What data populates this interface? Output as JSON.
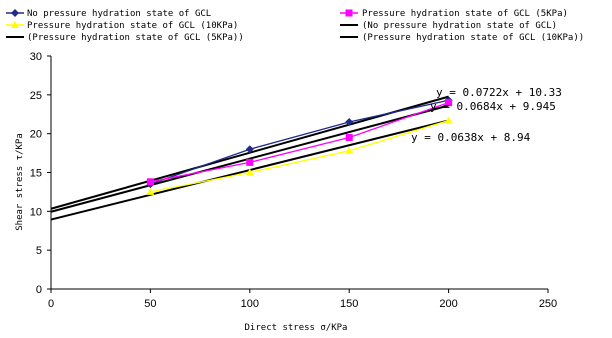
{
  "chart_data": {
    "type": "line",
    "title": "",
    "xlabel": "Direct stress σ/KPa",
    "ylabel": "Shear stress τ/KPa",
    "xlim": [
      0,
      250
    ],
    "ylim": [
      0,
      30
    ],
    "x_ticks": [
      "0",
      "50",
      "100",
      "150",
      "200",
      "250"
    ],
    "y_ticks": [
      "0",
      "5",
      "10",
      "15",
      "20",
      "25",
      "30"
    ],
    "grid": false,
    "legend_position": "top",
    "series": [
      {
        "name": "No pressure hydration state of GCL",
        "kind": "data",
        "color": "#1f2a8a",
        "marker": "diamond",
        "x": [
          50,
          100,
          150,
          200
        ],
        "y": [
          13.5,
          18.0,
          21.5,
          24.3
        ]
      },
      {
        "name": "Pressure hydration state of GCL (5KPa)",
        "kind": "data",
        "color": "#ff00ff",
        "marker": "square",
        "x": [
          50,
          100,
          150,
          200
        ],
        "y": [
          13.8,
          16.3,
          19.5,
          24.0
        ]
      },
      {
        "name": "Pressure hydration state of GCL (10KPa)",
        "kind": "data",
        "color": "#ffff00",
        "marker": "triangle",
        "x": [
          50,
          100,
          150,
          200
        ],
        "y": [
          12.5,
          15.0,
          17.8,
          21.7
        ]
      },
      {
        "name": "(No pressure hydration state of GCL)",
        "kind": "trendline",
        "color": "#000000",
        "slope": 0.0722,
        "intercept": 10.33
      },
      {
        "name": "(Pressure hydration state of GCL (5KPa))",
        "kind": "trendline",
        "color": "#000000",
        "slope": 0.0684,
        "intercept": 9.945
      },
      {
        "name": "(Pressure hydration state of GCL (10KPa))",
        "kind": "trendline",
        "color": "#000000",
        "slope": 0.0638,
        "intercept": 8.94
      }
    ],
    "equations": [
      "y = 0.0722x + 10.33",
      "y = 0.0684x + 9.945",
      "y = 0.0638x + 8.94"
    ]
  }
}
